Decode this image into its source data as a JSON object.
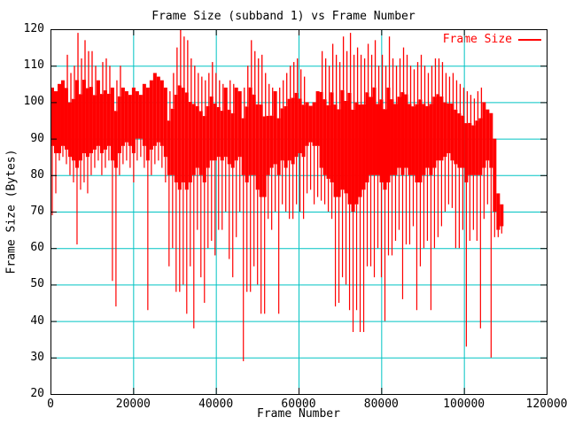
{
  "colors": {
    "background": "#ffffff",
    "frame": "#000000",
    "text": "#000000",
    "series": "#ff0000",
    "grid": "#00c3c3"
  },
  "chart_data": {
    "type": "line",
    "title": "Frame Size (subband 1) vs Frame Number",
    "xlabel": "Frame Number",
    "ylabel": "Frame Size (Bytes)",
    "xlim": [
      0,
      120000
    ],
    "ylim": [
      20,
      120
    ],
    "x_ticks": [
      0,
      20000,
      40000,
      60000,
      80000,
      100000,
      120000
    ],
    "y_ticks": [
      20,
      30,
      40,
      50,
      60,
      70,
      80,
      90,
      100,
      110,
      120
    ],
    "grid": true,
    "legend": {
      "label": "Frame Size",
      "position": "top-right"
    },
    "series_name": "Frame Size",
    "series_format": "envelope bins of frames_per_bin frames: [spike_min, band_min, band_max] in bytes",
    "frames_per_bin": 856,
    "bins": [
      [
        69,
        88,
        104
      ],
      [
        75,
        86,
        103
      ],
      [
        84,
        86,
        105
      ],
      [
        85,
        88,
        106
      ],
      [
        83,
        87,
        113
      ],
      [
        80,
        85,
        108
      ],
      [
        78,
        84,
        110
      ],
      [
        61,
        82,
        119
      ],
      [
        76,
        84,
        112
      ],
      [
        78,
        86,
        117
      ],
      [
        75,
        85,
        114
      ],
      [
        80,
        86,
        114
      ],
      [
        82,
        87,
        110
      ],
      [
        84,
        88,
        106
      ],
      [
        80,
        86,
        111
      ],
      [
        82,
        87,
        112
      ],
      [
        84,
        88,
        110
      ],
      [
        51,
        84,
        104
      ],
      [
        44,
        82,
        106
      ],
      [
        80,
        86,
        110
      ],
      [
        83,
        88,
        104
      ],
      [
        84,
        89,
        103
      ],
      [
        82,
        88,
        102
      ],
      [
        78,
        86,
        104
      ],
      [
        84,
        90,
        103
      ],
      [
        85,
        90,
        102
      ],
      [
        82,
        88,
        105
      ],
      [
        43,
        84,
        104
      ],
      [
        80,
        87,
        106
      ],
      [
        83,
        88,
        108
      ],
      [
        84,
        89,
        107
      ],
      [
        82,
        88,
        106
      ],
      [
        78,
        85,
        104
      ],
      [
        55,
        80,
        103
      ],
      [
        60,
        80,
        108
      ],
      [
        48,
        78,
        115
      ],
      [
        48,
        76,
        120
      ],
      [
        50,
        78,
        118
      ],
      [
        42,
        76,
        117
      ],
      [
        55,
        78,
        112
      ],
      [
        38,
        80,
        110
      ],
      [
        65,
        82,
        108
      ],
      [
        52,
        80,
        107
      ],
      [
        45,
        78,
        106
      ],
      [
        60,
        82,
        108
      ],
      [
        62,
        84,
        111
      ],
      [
        58,
        84,
        108
      ],
      [
        65,
        85,
        106
      ],
      [
        65,
        84,
        105
      ],
      [
        70,
        85,
        104
      ],
      [
        57,
        83,
        106
      ],
      [
        52,
        82,
        105
      ],
      [
        63,
        84,
        104
      ],
      [
        70,
        85,
        103
      ],
      [
        29,
        80,
        104
      ],
      [
        48,
        78,
        110
      ],
      [
        48,
        80,
        117
      ],
      [
        55,
        80,
        114
      ],
      [
        50,
        76,
        112
      ],
      [
        42,
        74,
        113
      ],
      [
        42,
        74,
        108
      ],
      [
        68,
        80,
        105
      ],
      [
        65,
        82,
        104
      ],
      [
        70,
        83,
        103
      ],
      [
        42,
        80,
        104
      ],
      [
        72,
        84,
        106
      ],
      [
        70,
        82,
        108
      ],
      [
        68,
        84,
        110
      ],
      [
        68,
        83,
        111
      ],
      [
        72,
        85,
        112
      ],
      [
        70,
        86,
        109
      ],
      [
        68,
        85,
        107
      ],
      [
        75,
        88,
        100
      ],
      [
        76,
        89,
        99
      ],
      [
        72,
        88,
        100
      ],
      [
        74,
        88,
        103
      ],
      [
        73,
        82,
        114
      ],
      [
        72,
        80,
        112
      ],
      [
        70,
        79,
        110
      ],
      [
        68,
        78,
        116
      ],
      [
        44,
        74,
        113
      ],
      [
        45,
        74,
        111
      ],
      [
        52,
        76,
        118
      ],
      [
        50,
        75,
        114
      ],
      [
        43,
        72,
        119
      ],
      [
        37,
        70,
        113
      ],
      [
        43,
        72,
        115
      ],
      [
        37,
        74,
        113
      ],
      [
        37,
        76,
        112
      ],
      [
        55,
        78,
        116
      ],
      [
        55,
        80,
        113
      ],
      [
        52,
        80,
        117
      ],
      [
        60,
        80,
        110
      ],
      [
        52,
        78,
        113
      ],
      [
        40,
        76,
        110
      ],
      [
        58,
        78,
        118
      ],
      [
        58,
        80,
        112
      ],
      [
        62,
        80,
        110
      ],
      [
        65,
        82,
        112
      ],
      [
        46,
        80,
        115
      ],
      [
        61,
        82,
        113
      ],
      [
        61,
        80,
        110
      ],
      [
        66,
        80,
        109
      ],
      [
        43,
        78,
        111
      ],
      [
        55,
        78,
        113
      ],
      [
        60,
        80,
        110
      ],
      [
        62,
        82,
        108
      ],
      [
        43,
        80,
        110
      ],
      [
        60,
        82,
        112
      ],
      [
        63,
        84,
        112
      ],
      [
        66,
        84,
        111
      ],
      [
        70,
        85,
        108
      ],
      [
        72,
        86,
        107
      ],
      [
        71,
        84,
        108
      ],
      [
        60,
        83,
        106
      ],
      [
        60,
        82,
        105
      ],
      [
        65,
        82,
        104
      ],
      [
        33,
        78,
        103
      ],
      [
        62,
        80,
        102
      ],
      [
        65,
        80,
        101
      ],
      [
        62,
        80,
        103
      ],
      [
        38,
        80,
        104
      ],
      [
        68,
        82,
        100
      ],
      [
        72,
        84,
        98
      ],
      [
        30,
        82,
        97
      ],
      [
        63,
        70,
        90
      ],
      [
        63,
        65,
        75
      ],
      [
        64,
        66,
        72
      ]
    ]
  }
}
